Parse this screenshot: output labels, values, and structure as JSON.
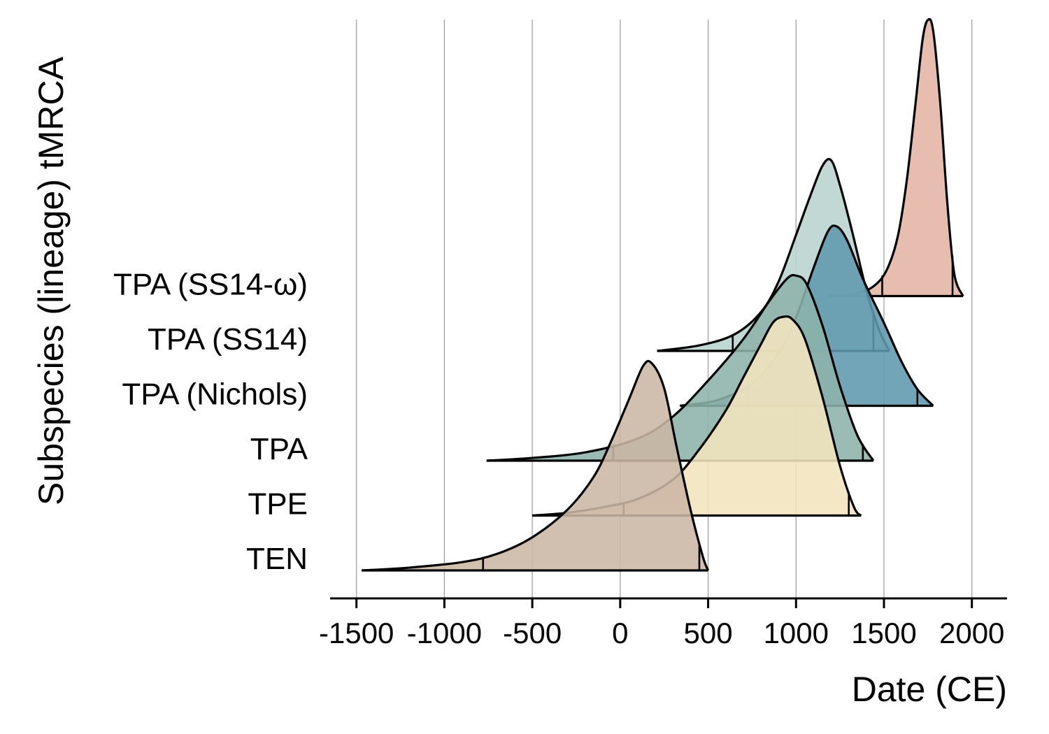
{
  "chart_data": {
    "type": "ridgeline",
    "xlabel": "Date (CE)",
    "ylabel": "Subspecies (lineage) tMRCA",
    "xlim": [
      -1650,
      2200
    ],
    "x_ticks": [
      -1500,
      -1000,
      -500,
      0,
      500,
      1000,
      1500,
      2000
    ],
    "x_tick_labels": [
      "-1500",
      "-1000",
      "-500",
      "0",
      "500",
      "1000",
      "1500",
      "2000"
    ],
    "grid": "vertical",
    "categories": [
      "TEN",
      "TPE",
      "TPA",
      "TPA (Nichols)",
      "TPA (SS14)",
      "TPA (SS14-ω)"
    ],
    "series": [
      {
        "name": "TEN",
        "color": "#cbb6a4",
        "range": [
          -1470,
          500
        ],
        "hpd": [
          -780,
          450
        ],
        "density": [
          [
            -1470,
            0
          ],
          [
            -1200,
            0.01
          ],
          [
            -900,
            0.03
          ],
          [
            -700,
            0.06
          ],
          [
            -500,
            0.12
          ],
          [
            -300,
            0.22
          ],
          [
            -150,
            0.34
          ],
          [
            -50,
            0.47
          ],
          [
            50,
            0.62
          ],
          [
            130,
            0.74
          ],
          [
            180,
            0.75
          ],
          [
            250,
            0.66
          ],
          [
            320,
            0.45
          ],
          [
            400,
            0.22
          ],
          [
            470,
            0.05
          ],
          [
            500,
            0
          ]
        ]
      },
      {
        "name": "TPE",
        "color": "#f2e4be",
        "range": [
          -500,
          1370
        ],
        "hpd": [
          20,
          1300
        ],
        "density": [
          [
            -500,
            0
          ],
          [
            -300,
            0.01
          ],
          [
            -100,
            0.03
          ],
          [
            100,
            0.06
          ],
          [
            300,
            0.13
          ],
          [
            450,
            0.24
          ],
          [
            600,
            0.38
          ],
          [
            700,
            0.5
          ],
          [
            800,
            0.62
          ],
          [
            870,
            0.7
          ],
          [
            930,
            0.72
          ],
          [
            980,
            0.71
          ],
          [
            1050,
            0.64
          ],
          [
            1150,
            0.43
          ],
          [
            1250,
            0.18
          ],
          [
            1330,
            0.03
          ],
          [
            1370,
            0
          ]
        ]
      },
      {
        "name": "TPA",
        "color": "#8db3ab",
        "range": [
          -760,
          1440
        ],
        "hpd": [
          -40,
          1380
        ],
        "density": [
          [
            -760,
            0
          ],
          [
            -500,
            0.01
          ],
          [
            -200,
            0.03
          ],
          [
            100,
            0.08
          ],
          [
            300,
            0.16
          ],
          [
            500,
            0.29
          ],
          [
            700,
            0.44
          ],
          [
            850,
            0.58
          ],
          [
            950,
            0.66
          ],
          [
            1000,
            0.67
          ],
          [
            1060,
            0.64
          ],
          [
            1150,
            0.49
          ],
          [
            1250,
            0.27
          ],
          [
            1350,
            0.09
          ],
          [
            1440,
            0
          ]
        ]
      },
      {
        "name": "TPA (Nichols)",
        "color": "#5e98ad",
        "range": [
          340,
          1780
        ],
        "hpd": [
          720,
          1690
        ],
        "density": [
          [
            340,
            0
          ],
          [
            550,
            0.02
          ],
          [
            750,
            0.08
          ],
          [
            900,
            0.19
          ],
          [
            1000,
            0.32
          ],
          [
            1100,
            0.5
          ],
          [
            1180,
            0.63
          ],
          [
            1230,
            0.65
          ],
          [
            1290,
            0.6
          ],
          [
            1380,
            0.46
          ],
          [
            1500,
            0.3
          ],
          [
            1600,
            0.16
          ],
          [
            1690,
            0.06
          ],
          [
            1780,
            0
          ]
        ]
      },
      {
        "name": "TPA (SS14)",
        "color": "#b8d3cf",
        "range": [
          210,
          1530
        ],
        "hpd": [
          640,
          1440
        ],
        "density": [
          [
            210,
            0
          ],
          [
            450,
            0.02
          ],
          [
            650,
            0.06
          ],
          [
            800,
            0.14
          ],
          [
            900,
            0.25
          ],
          [
            1000,
            0.42
          ],
          [
            1080,
            0.56
          ],
          [
            1150,
            0.67
          ],
          [
            1200,
            0.69
          ],
          [
            1250,
            0.6
          ],
          [
            1320,
            0.43
          ],
          [
            1400,
            0.22
          ],
          [
            1470,
            0.08
          ],
          [
            1530,
            0
          ]
        ]
      },
      {
        "name": "TPA (SS14-ω)",
        "color": "#e4b4a4",
        "range": [
          1180,
          1950
        ],
        "hpd": [
          1490,
          1890
        ],
        "density": [
          [
            1180,
            0
          ],
          [
            1350,
            0.01
          ],
          [
            1450,
            0.04
          ],
          [
            1520,
            0.1
          ],
          [
            1580,
            0.22
          ],
          [
            1630,
            0.42
          ],
          [
            1680,
            0.7
          ],
          [
            1720,
            0.93
          ],
          [
            1750,
            1.0
          ],
          [
            1780,
            0.96
          ],
          [
            1820,
            0.7
          ],
          [
            1860,
            0.34
          ],
          [
            1900,
            0.08
          ],
          [
            1950,
            0
          ]
        ]
      }
    ]
  }
}
